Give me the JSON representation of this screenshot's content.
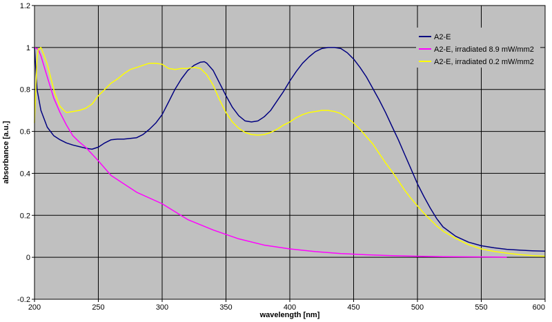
{
  "chart_data": {
    "type": "line",
    "title": "",
    "xlabel": "wavelength [nm]",
    "ylabel": "absorbance [a.u.]",
    "xlim": [
      200,
      600
    ],
    "ylim": [
      -0.2,
      1.2
    ],
    "xticks": [
      200,
      250,
      300,
      350,
      400,
      450,
      500,
      550,
      600
    ],
    "yticks": [
      -0.2,
      0,
      0.2,
      0.4,
      0.6,
      0.8,
      1,
      1.2
    ],
    "xtick_labels": [
      "200",
      "250",
      "300",
      "350",
      "400",
      "450",
      "500",
      "550",
      "600"
    ],
    "ytick_labels": [
      "-0.2",
      "0",
      "0.2",
      "0.4",
      "0.6",
      "0.8",
      "1",
      "1.2"
    ],
    "grid": true,
    "plot_background": "#c0c0c0",
    "legend_position": "top-right",
    "series": [
      {
        "name": "A2-E",
        "color": "#000080",
        "x": [
          200,
          202,
          205,
          210,
          215,
          220,
          225,
          230,
          240,
          245,
          250,
          255,
          260,
          265,
          270,
          280,
          285,
          290,
          295,
          300,
          305,
          310,
          315,
          320,
          325,
          330,
          333,
          335,
          340,
          345,
          350,
          355,
          360,
          365,
          370,
          375,
          380,
          385,
          390,
          395,
          400,
          405,
          410,
          415,
          420,
          425,
          430,
          435,
          440,
          445,
          450,
          455,
          460,
          465,
          470,
          475,
          480,
          485,
          490,
          495,
          500,
          505,
          510,
          515,
          520,
          530,
          540,
          550,
          560,
          570,
          580,
          590,
          600
        ],
        "y": [
          1.0,
          0.8,
          0.7,
          0.62,
          0.58,
          0.56,
          0.545,
          0.535,
          0.52,
          0.515,
          0.525,
          0.545,
          0.56,
          0.563,
          0.563,
          0.57,
          0.585,
          0.61,
          0.64,
          0.68,
          0.74,
          0.8,
          0.85,
          0.89,
          0.915,
          0.93,
          0.932,
          0.925,
          0.89,
          0.83,
          0.77,
          0.715,
          0.675,
          0.65,
          0.645,
          0.65,
          0.67,
          0.7,
          0.745,
          0.79,
          0.84,
          0.885,
          0.925,
          0.955,
          0.98,
          0.995,
          1.0,
          1.0,
          0.995,
          0.975,
          0.945,
          0.905,
          0.86,
          0.805,
          0.75,
          0.69,
          0.625,
          0.56,
          0.49,
          0.42,
          0.35,
          0.29,
          0.235,
          0.185,
          0.145,
          0.1,
          0.072,
          0.055,
          0.045,
          0.038,
          0.034,
          0.031,
          0.029
        ]
      },
      {
        "name": "A2-E, irradiated 8.9 mW/mm2",
        "color": "#ff00ff",
        "x": [
          200,
          203,
          205,
          210,
          215,
          220,
          225,
          230,
          235,
          240,
          250,
          260,
          270,
          280,
          300,
          320,
          340,
          360,
          380,
          400,
          420,
          440,
          460,
          480,
          500,
          520,
          540,
          560,
          570
        ],
        "y": [
          1.0,
          0.99,
          0.96,
          0.86,
          0.76,
          0.69,
          0.63,
          0.58,
          0.55,
          0.525,
          0.46,
          0.39,
          0.35,
          0.31,
          0.255,
          0.18,
          0.13,
          0.088,
          0.058,
          0.04,
          0.027,
          0.018,
          0.012,
          0.008,
          0.005,
          0.003,
          0.002,
          0.001,
          0.0
        ]
      },
      {
        "name": "A2-E, irradiated 0.2 mW/mm2",
        "color": "#ffff00",
        "x": [
          200,
          202,
          203,
          205,
          207,
          210,
          213,
          216,
          220,
          223,
          225,
          230,
          235,
          240,
          245,
          250,
          255,
          260,
          265,
          270,
          275,
          280,
          285,
          290,
          295,
          300,
          305,
          310,
          315,
          320,
          325,
          330,
          335,
          340,
          345,
          350,
          355,
          360,
          365,
          370,
          375,
          380,
          385,
          390,
          395,
          400,
          405,
          410,
          415,
          420,
          425,
          430,
          435,
          440,
          445,
          450,
          455,
          460,
          465,
          470,
          475,
          480,
          485,
          490,
          495,
          500,
          505,
          510,
          515,
          520,
          530,
          540,
          550,
          560,
          570,
          580,
          590,
          600
        ],
        "y": [
          0.64,
          0.95,
          0.99,
          1.0,
          0.97,
          0.92,
          0.85,
          0.78,
          0.72,
          0.7,
          0.69,
          0.695,
          0.7,
          0.71,
          0.73,
          0.77,
          0.8,
          0.83,
          0.85,
          0.875,
          0.895,
          0.905,
          0.915,
          0.925,
          0.925,
          0.92,
          0.9,
          0.895,
          0.9,
          0.9,
          0.905,
          0.9,
          0.87,
          0.82,
          0.75,
          0.69,
          0.645,
          0.615,
          0.595,
          0.585,
          0.582,
          0.585,
          0.595,
          0.61,
          0.63,
          0.645,
          0.665,
          0.68,
          0.69,
          0.695,
          0.7,
          0.7,
          0.695,
          0.685,
          0.665,
          0.64,
          0.61,
          0.575,
          0.54,
          0.495,
          0.45,
          0.41,
          0.365,
          0.32,
          0.28,
          0.245,
          0.21,
          0.18,
          0.15,
          0.125,
          0.09,
          0.06,
          0.04,
          0.028,
          0.02,
          0.013,
          0.008,
          0.005
        ]
      }
    ]
  }
}
